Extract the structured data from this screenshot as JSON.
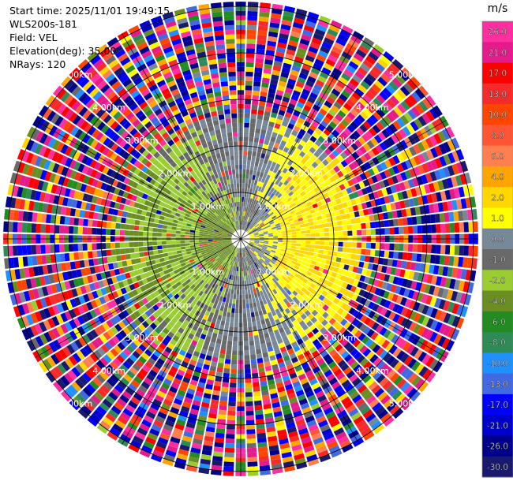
{
  "header": {
    "start_time": "Start time: 2025/11/01 19:49:15",
    "instrument": "WLS200s-181",
    "field": "Field: VEL",
    "elevation": "Elevation(deg): 35.00",
    "nrays": "NRays: 120"
  },
  "chart_data": {
    "type": "heatmap",
    "projection": "polar PPI (plan position indicator)",
    "field": "VEL",
    "rays": 120,
    "elevation_deg": 35.0,
    "range_ring_labels": [
      "1.00km",
      "2.00km",
      "3.00km",
      "4.00km",
      "5.00km"
    ],
    "range_rings_km": [
      1,
      2,
      3,
      4,
      5
    ],
    "max_range_km": 5.1,
    "colorbar": {
      "unit": "m/s",
      "tick_labels": [
        "26.0",
        "21.0",
        "17.0",
        "13.0",
        "10.0",
        "8.0",
        "6.0",
        "4.0",
        "2.0",
        "1.0",
        "0.0",
        "-1.0",
        "-2.0",
        "-4.0",
        "-6.0",
        "-8.0",
        "-10.0",
        "-13.0",
        "-17.0",
        "-21.0",
        "-26.0",
        "-30.0"
      ],
      "bins": [
        {
          "from": 26,
          "to": 30,
          "color": "#ff2fa0"
        },
        {
          "from": 21,
          "to": 26,
          "color": "#e51a8c"
        },
        {
          "from": 17,
          "to": 21,
          "color": "#ff0000"
        },
        {
          "from": 13,
          "to": 17,
          "color": "#f52a2a"
        },
        {
          "from": 10,
          "to": 13,
          "color": "#ff4500"
        },
        {
          "from": 8,
          "to": 10,
          "color": "#ff5535"
        },
        {
          "from": 6,
          "to": 8,
          "color": "#ff7f50"
        },
        {
          "from": 4,
          "to": 6,
          "color": "#ffa500"
        },
        {
          "from": 2,
          "to": 4,
          "color": "#ffd700"
        },
        {
          "from": 1,
          "to": 2,
          "color": "#ffff00"
        },
        {
          "from": 0,
          "to": 1,
          "color": "#778899"
        },
        {
          "from": -1,
          "to": 0,
          "color": "#696969"
        },
        {
          "from": -2,
          "to": -1,
          "color": "#9acd32"
        },
        {
          "from": -4,
          "to": -2,
          "color": "#6b8e23"
        },
        {
          "from": -6,
          "to": -4,
          "color": "#228b22"
        },
        {
          "from": -8,
          "to": -6,
          "color": "#2e8b57"
        },
        {
          "from": -10,
          "to": -8,
          "color": "#1e90ff"
        },
        {
          "from": -13,
          "to": -10,
          "color": "#4169e1"
        },
        {
          "from": -17,
          "to": -13,
          "color": "#0000ff"
        },
        {
          "from": -21,
          "to": -17,
          "color": "#0000cd"
        },
        {
          "from": -26,
          "to": -21,
          "color": "#00008b"
        },
        {
          "from": -30,
          "to": -26,
          "color": "#191970"
        }
      ]
    },
    "velocity_pattern": {
      "near_field_km": 2.6,
      "receding_sector": "east (yellow, ~1 to 3 m/s)",
      "approaching_sector": "west (olive/green, ~-1 to -4 m/s)",
      "far_field": "noisy, random colors across full scale"
    }
  }
}
